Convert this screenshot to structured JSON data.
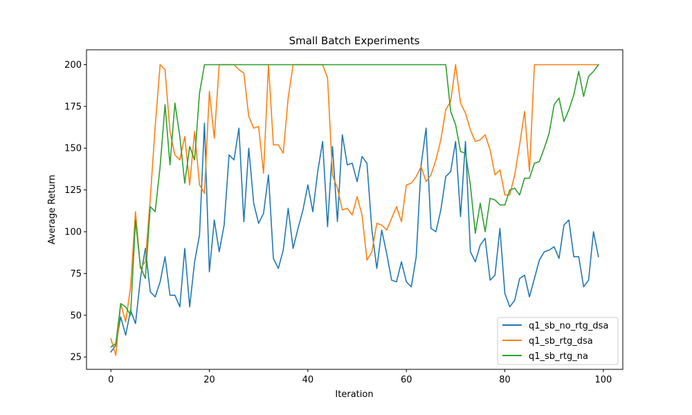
{
  "chart_data": {
    "type": "line",
    "title": "Small Batch Experiments",
    "xlabel": "Iteration",
    "ylabel": "Average Return",
    "xlim": [
      -4.95,
      103.95
    ],
    "ylim": [
      17.6,
      208.9
    ],
    "xticks": [
      0,
      20,
      40,
      60,
      80,
      100
    ],
    "yticks": [
      25,
      50,
      75,
      100,
      125,
      150,
      175,
      200
    ],
    "grid": false,
    "legend_position": "lower-right",
    "series": [
      {
        "name": "q1_sb_no_rtg_dsa",
        "color": "#1f77b4",
        "values": [
          28,
          32,
          49,
          38,
          53,
          45,
          72,
          90,
          64,
          61,
          70,
          85,
          62,
          62,
          55,
          90,
          55,
          82,
          98,
          165,
          76,
          107,
          88,
          104,
          146,
          143,
          162,
          106,
          150,
          117,
          105,
          111,
          134,
          84,
          78,
          89,
          114,
          90,
          102,
          113,
          128,
          112,
          136,
          154,
          103,
          151,
          106,
          158,
          140,
          141,
          130,
          145,
          141,
          101,
          78,
          101,
          87,
          71,
          70,
          82,
          70,
          67,
          85,
          140,
          162,
          102,
          100,
          113,
          133,
          136,
          154,
          109,
          154,
          88,
          82,
          92,
          96,
          71,
          74,
          102,
          63,
          55,
          59,
          72,
          74,
          61,
          72,
          83,
          88,
          89,
          91,
          84,
          104,
          107,
          85,
          85,
          67,
          71,
          100,
          85
        ]
      },
      {
        "name": "q1_sb_rtg_dsa",
        "color": "#ff7f0e",
        "values": [
          36,
          26,
          57,
          46,
          67,
          112,
          78,
          82,
          120,
          163,
          200,
          197,
          160,
          146,
          143,
          157,
          128,
          160,
          128,
          123,
          184,
          156,
          200,
          200,
          200,
          200,
          197,
          195,
          169,
          162,
          163,
          135,
          200,
          152,
          152,
          147,
          180,
          200,
          200,
          200,
          200,
          200,
          200,
          200,
          192,
          134,
          126,
          113,
          114,
          110,
          121,
          110,
          83,
          88,
          105,
          104,
          101,
          108,
          115,
          106,
          128,
          129,
          133,
          139,
          130,
          134,
          143,
          155,
          173,
          178,
          200,
          177,
          171,
          161,
          154,
          155,
          158,
          149,
          134,
          137,
          122,
          122,
          134,
          152,
          172,
          136,
          200,
          200,
          200,
          200,
          200,
          200,
          200,
          200,
          200,
          200,
          200,
          200,
          200,
          200
        ]
      },
      {
        "name": "q1_sb_rtg_na",
        "color": "#2ca02c",
        "values": [
          31,
          33,
          57,
          55,
          50,
          107,
          79,
          72,
          115,
          112,
          139,
          176,
          140,
          177,
          157,
          129,
          151,
          143,
          183,
          200,
          200,
          200,
          200,
          200,
          200,
          200,
          200,
          200,
          200,
          200,
          200,
          200,
          200,
          200,
          200,
          200,
          200,
          200,
          200,
          200,
          200,
          200,
          200,
          200,
          200,
          200,
          200,
          200,
          200,
          200,
          200,
          200,
          200,
          200,
          200,
          200,
          200,
          200,
          200,
          200,
          200,
          200,
          200,
          200,
          200,
          200,
          200,
          200,
          200,
          172,
          164,
          148,
          147,
          128,
          99,
          117,
          100,
          120,
          119,
          116,
          116,
          125,
          126,
          122,
          132,
          132,
          141,
          142,
          150,
          159,
          176,
          180,
          166,
          173,
          182,
          196,
          181,
          193,
          196,
          200
        ]
      }
    ]
  }
}
